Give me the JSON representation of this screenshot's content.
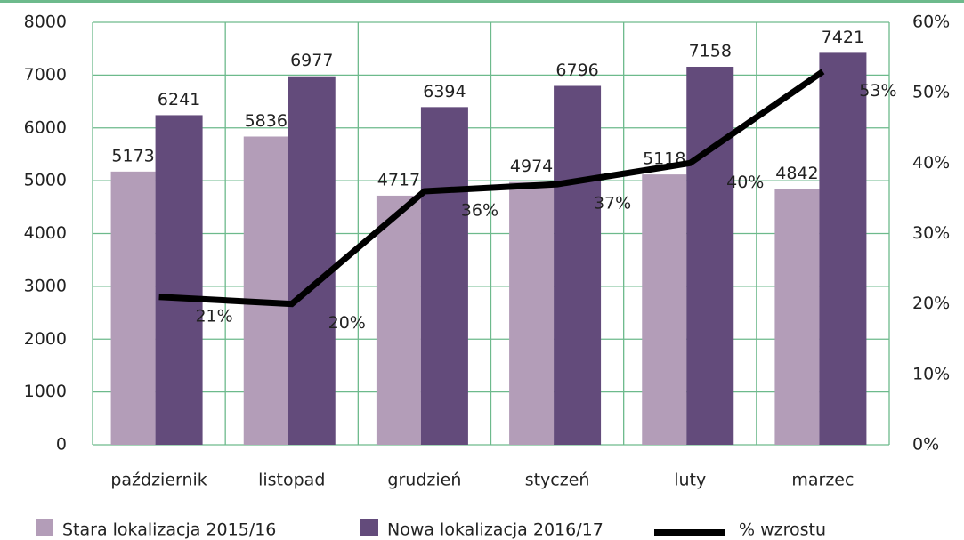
{
  "chart_data": {
    "type": "bar-line",
    "categories": [
      "październik",
      "listopad",
      "grudzień",
      "styczeń",
      "luty",
      "marzec"
    ],
    "series": [
      {
        "name": "Stara lokalizacja 2015/16",
        "color": "#b39db8",
        "values": [
          5173,
          5836,
          4717,
          4974,
          5118,
          4842
        ]
      },
      {
        "name": "Nowa lokalizacja 2016/17",
        "color": "#634b7b",
        "values": [
          6241,
          6977,
          6394,
          6796,
          7158,
          7421
        ]
      },
      {
        "name": "% wzrostu",
        "color": "#000000",
        "type": "line",
        "axis": "y2",
        "values": [
          21,
          20,
          36,
          37,
          40,
          53
        ],
        "value_labels": [
          "21%",
          "20%",
          "36%",
          "37%",
          "40%",
          "53%"
        ]
      }
    ],
    "ylim": [
      0,
      8000
    ],
    "yticks": [
      0,
      1000,
      2000,
      3000,
      4000,
      5000,
      6000,
      7000,
      8000
    ],
    "y2lim": [
      0,
      60
    ],
    "y2ticks": [
      {
        "value": 0,
        "label": "0%"
      },
      {
        "value": 10,
        "label": "10%"
      },
      {
        "value": 20,
        "label": "20%"
      },
      {
        "value": 30,
        "label": "30%"
      },
      {
        "value": 40,
        "label": "40%"
      },
      {
        "value": 50,
        "label": "50%"
      },
      {
        "value": 60,
        "label": "60%"
      }
    ],
    "grid": true,
    "grid_color": "#6dba8c"
  }
}
